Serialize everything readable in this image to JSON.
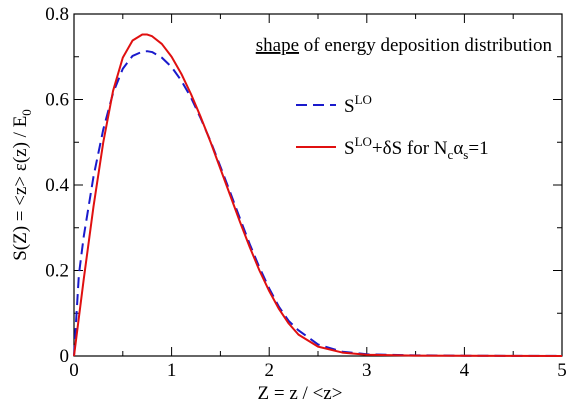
{
  "chart_data": {
    "type": "line",
    "title": "",
    "annotation": {
      "underlined": "shape",
      "rest": " of energy deposition distribution"
    },
    "xlabel": "Z  =  z / <z>",
    "ylabel": {
      "main": "S(Z)  =  <z> ε(z) / E",
      "sub": "0"
    },
    "xlim": [
      0,
      5
    ],
    "ylim": [
      0,
      0.8
    ],
    "x_ticks": [
      0,
      1,
      2,
      3,
      4,
      5
    ],
    "x_tick_labels": [
      "0",
      "1",
      "2",
      "3",
      "4",
      "5"
    ],
    "y_ticks": [
      0,
      0.2,
      0.4,
      0.6,
      0.8
    ],
    "y_tick_labels": [
      "0",
      "0.2",
      "0.4",
      "0.6",
      "0.8"
    ],
    "grid": false,
    "legend_placement": "top-right",
    "series": [
      {
        "name": "S^LO",
        "legend_label": {
          "base": "S",
          "sup": "LO",
          "rest": ""
        },
        "color": "#1a1acc",
        "style": "dashed",
        "x": [
          0.0,
          0.05,
          0.1,
          0.2,
          0.3,
          0.4,
          0.5,
          0.6,
          0.7,
          0.75,
          0.8,
          0.9,
          1.0,
          1.1,
          1.2,
          1.3,
          1.4,
          1.5,
          1.6,
          1.7,
          1.8,
          1.9,
          2.0,
          2.1,
          2.2,
          2.3,
          2.5,
          2.75,
          3.0,
          3.5,
          4.0,
          4.5,
          5.0
        ],
        "y": [
          0.0,
          0.19,
          0.28,
          0.42,
          0.53,
          0.615,
          0.672,
          0.702,
          0.712,
          0.713,
          0.711,
          0.698,
          0.676,
          0.644,
          0.604,
          0.555,
          0.502,
          0.443,
          0.383,
          0.322,
          0.262,
          0.207,
          0.158,
          0.115,
          0.082,
          0.06,
          0.027,
          0.01,
          0.004,
          0.0015,
          0.0007,
          0.0003,
          0.0002
        ]
      },
      {
        "name": "S^LO+δS for N_cα_s=1",
        "legend_label": {
          "base": "S",
          "sup": "LO",
          "rest": "+δS  for  N",
          "sub1": "c",
          "mid": "α",
          "sub2": "s",
          "end": "=1"
        },
        "color": "#e01010",
        "style": "solid",
        "x": [
          0.0,
          0.05,
          0.1,
          0.2,
          0.3,
          0.4,
          0.5,
          0.6,
          0.7,
          0.75,
          0.8,
          0.9,
          1.0,
          1.1,
          1.2,
          1.3,
          1.4,
          1.5,
          1.6,
          1.7,
          1.8,
          1.9,
          2.0,
          2.1,
          2.2,
          2.3,
          2.5,
          2.75,
          3.0,
          3.5,
          4.0,
          4.5,
          5.0
        ],
        "y": [
          0.0,
          0.09,
          0.18,
          0.35,
          0.5,
          0.62,
          0.698,
          0.738,
          0.752,
          0.752,
          0.748,
          0.73,
          0.7,
          0.66,
          0.612,
          0.558,
          0.5,
          0.438,
          0.376,
          0.314,
          0.255,
          0.2,
          0.152,
          0.11,
          0.076,
          0.05,
          0.022,
          0.008,
          0.003,
          0.001,
          0.0005,
          0.0002,
          0.0001
        ]
      }
    ]
  }
}
